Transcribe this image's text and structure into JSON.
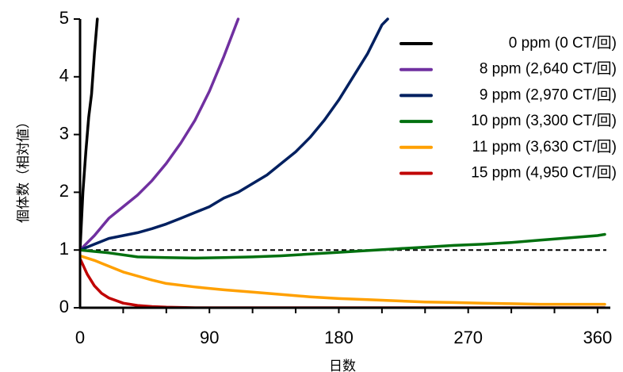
{
  "chart_data": {
    "type": "line",
    "title": "",
    "xlabel": "日数",
    "ylabel": "個体数（相対値）",
    "xlim": [
      0,
      365
    ],
    "ylim": [
      0,
      5
    ],
    "xticks": [
      0,
      90,
      180,
      270,
      360
    ],
    "yticks": [
      0,
      1,
      2,
      3,
      4,
      5
    ],
    "grid": false,
    "legend_position": "top-right",
    "reference_line": {
      "y": 1,
      "style": "dashed",
      "color": "#000000"
    },
    "series": [
      {
        "name": "0 ppm (0 CT/回)",
        "color": "#000000",
        "points": [
          [
            0,
            1.0
          ],
          [
            2,
            2.0
          ],
          [
            4,
            2.7
          ],
          [
            6,
            3.3
          ],
          [
            8,
            3.7
          ],
          [
            10,
            4.4
          ],
          [
            12,
            5.0
          ]
        ]
      },
      {
        "name": "8 ppm (2,640 CT/回)",
        "color": "#7030a0",
        "points": [
          [
            0,
            1.0
          ],
          [
            10,
            1.25
          ],
          [
            20,
            1.55
          ],
          [
            30,
            1.75
          ],
          [
            40,
            1.95
          ],
          [
            50,
            2.2
          ],
          [
            60,
            2.5
          ],
          [
            70,
            2.85
          ],
          [
            80,
            3.25
          ],
          [
            90,
            3.75
          ],
          [
            100,
            4.35
          ],
          [
            110,
            5.0
          ]
        ]
      },
      {
        "name": "9 ppm (2,970 CT/回)",
        "color": "#002060",
        "points": [
          [
            0,
            1.0
          ],
          [
            10,
            1.1
          ],
          [
            20,
            1.2
          ],
          [
            30,
            1.25
          ],
          [
            40,
            1.3
          ],
          [
            50,
            1.37
          ],
          [
            60,
            1.45
          ],
          [
            70,
            1.55
          ],
          [
            80,
            1.65
          ],
          [
            90,
            1.75
          ],
          [
            100,
            1.9
          ],
          [
            110,
            2.0
          ],
          [
            120,
            2.15
          ],
          [
            130,
            2.3
          ],
          [
            140,
            2.5
          ],
          [
            150,
            2.7
          ],
          [
            160,
            2.95
          ],
          [
            170,
            3.25
          ],
          [
            180,
            3.6
          ],
          [
            190,
            4.0
          ],
          [
            200,
            4.4
          ],
          [
            210,
            4.9
          ],
          [
            214,
            5.0
          ]
        ]
      },
      {
        "name": "10 ppm (3,300 CT/回)",
        "color": "#00700f",
        "points": [
          [
            0,
            1.0
          ],
          [
            20,
            0.95
          ],
          [
            40,
            0.88
          ],
          [
            60,
            0.87
          ],
          [
            80,
            0.86
          ],
          [
            100,
            0.87
          ],
          [
            120,
            0.88
          ],
          [
            140,
            0.9
          ],
          [
            160,
            0.93
          ],
          [
            180,
            0.96
          ],
          [
            200,
            0.99
          ],
          [
            220,
            1.02
          ],
          [
            240,
            1.05
          ],
          [
            260,
            1.08
          ],
          [
            280,
            1.1
          ],
          [
            300,
            1.13
          ],
          [
            320,
            1.17
          ],
          [
            340,
            1.21
          ],
          [
            360,
            1.25
          ],
          [
            365,
            1.27
          ]
        ]
      },
      {
        "name": "11 ppm (3,630 CT/回)",
        "color": "#ffa000",
        "points": [
          [
            0,
            0.9
          ],
          [
            10,
            0.82
          ],
          [
            20,
            0.72
          ],
          [
            30,
            0.62
          ],
          [
            40,
            0.55
          ],
          [
            50,
            0.48
          ],
          [
            60,
            0.42
          ],
          [
            80,
            0.36
          ],
          [
            100,
            0.31
          ],
          [
            120,
            0.27
          ],
          [
            140,
            0.23
          ],
          [
            160,
            0.19
          ],
          [
            180,
            0.16
          ],
          [
            200,
            0.14
          ],
          [
            220,
            0.12
          ],
          [
            240,
            0.1
          ],
          [
            260,
            0.09
          ],
          [
            280,
            0.08
          ],
          [
            300,
            0.07
          ],
          [
            320,
            0.06
          ],
          [
            340,
            0.06
          ],
          [
            365,
            0.06
          ]
        ]
      },
      {
        "name": "15 ppm (4,950 CT/回)",
        "color": "#c00000",
        "points": [
          [
            0,
            0.85
          ],
          [
            5,
            0.58
          ],
          [
            10,
            0.38
          ],
          [
            15,
            0.25
          ],
          [
            20,
            0.17
          ],
          [
            30,
            0.08
          ],
          [
            40,
            0.04
          ],
          [
            50,
            0.02
          ],
          [
            60,
            0.01
          ],
          [
            70,
            0.005
          ],
          [
            80,
            0.0
          ],
          [
            365,
            0.0
          ]
        ]
      }
    ]
  }
}
